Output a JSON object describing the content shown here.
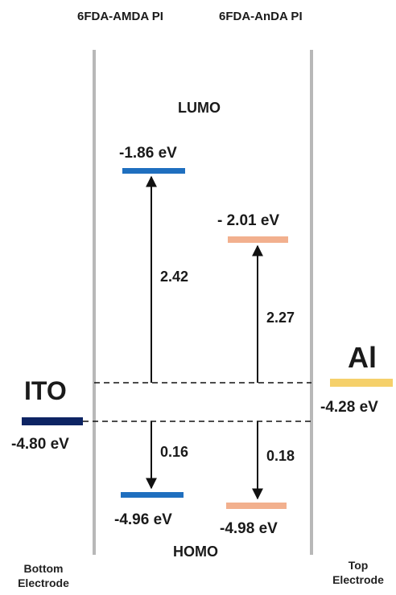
{
  "columns": {
    "left_material": "6FDA-AMDA PI",
    "right_material": "6FDA-AnDA PI"
  },
  "band_labels": {
    "lumo": "LUMO",
    "homo": "HOMO"
  },
  "electrodes": {
    "bottom": {
      "name": "ITO",
      "energy": "-4.80 eV",
      "caption_line1": "Bottom",
      "caption_line2": "Electrode",
      "color": "#0d2463"
    },
    "top": {
      "name": "Al",
      "energy": "-4.28 eV",
      "caption_line1": "Top",
      "caption_line2": "Electrode",
      "color": "#f5d06a"
    }
  },
  "levels": {
    "amda_lumo": {
      "label": "-1.86 eV",
      "color": "#1f6fbf"
    },
    "amda_homo": {
      "label": "-4.96 eV",
      "color": "#1f6fbf"
    },
    "anda_lumo": {
      "label": "- 2.01 eV",
      "color": "#f2b08e"
    },
    "anda_homo": {
      "label": "-4.98 eV",
      "color": "#f2b08e"
    }
  },
  "gaps": {
    "amda_electron": "2.42",
    "anda_electron": "2.27",
    "amda_hole": "0.16",
    "anda_hole": "0.18"
  }
}
